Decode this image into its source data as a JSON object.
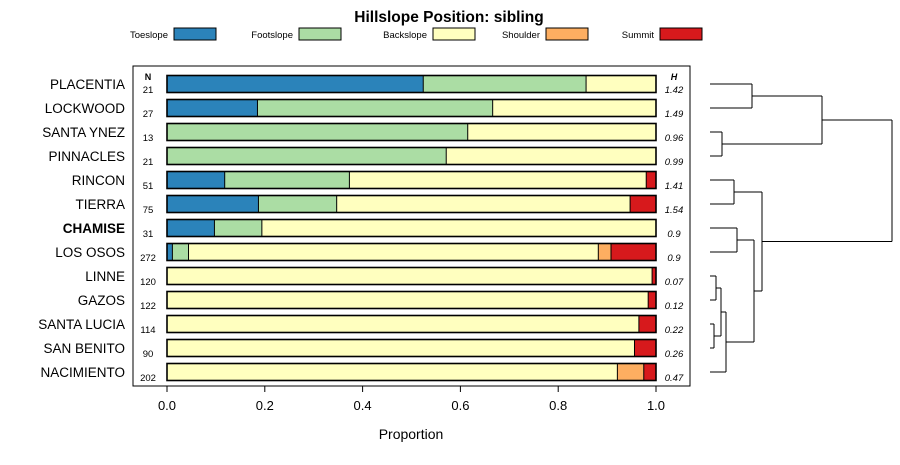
{
  "chart_data": {
    "type": "bar",
    "stacked": true,
    "orientation": "horizontal",
    "title": "Hillslope Position: sibling",
    "xlabel": "Proportion",
    "xlim": [
      0,
      1
    ],
    "x_ticks": [
      "0.0",
      "0.2",
      "0.4",
      "0.6",
      "0.8",
      "1.0"
    ],
    "legend": [
      {
        "label": "Toeslope",
        "color": "#2b83ba"
      },
      {
        "label": "Footslope",
        "color": "#abdda4"
      },
      {
        "label": "Backslope",
        "color": "#ffffbf"
      },
      {
        "label": "Shoulder",
        "color": "#fdae61"
      },
      {
        "label": "Summit",
        "color": "#d7191c"
      }
    ],
    "n_header": "N",
    "h_header": "H",
    "categories": [
      {
        "name": "PLACENTIA",
        "n": "21",
        "h": "1.42",
        "bold": false,
        "values": [
          0.524,
          0.333,
          0.143,
          0,
          0
        ]
      },
      {
        "name": "LOCKWOOD",
        "n": "27",
        "h": "1.49",
        "bold": false,
        "values": [
          0.185,
          0.481,
          0.334,
          0,
          0
        ]
      },
      {
        "name": "SANTA YNEZ",
        "n": "13",
        "h": "0.96",
        "bold": false,
        "values": [
          0,
          0.615,
          0.385,
          0,
          0
        ]
      },
      {
        "name": "PINNACLES",
        "n": "21",
        "h": "0.99",
        "bold": false,
        "values": [
          0,
          0.571,
          0.429,
          0,
          0
        ]
      },
      {
        "name": "RINCON",
        "n": "51",
        "h": "1.41",
        "bold": false,
        "values": [
          0.118,
          0.255,
          0.607,
          0,
          0.02
        ]
      },
      {
        "name": "TIERRA",
        "n": "75",
        "h": "1.54",
        "bold": false,
        "values": [
          0.187,
          0.16,
          0.6,
          0,
          0.053
        ]
      },
      {
        "name": "CHAMISE",
        "n": "31",
        "h": "0.9",
        "bold": true,
        "values": [
          0.097,
          0.097,
          0.806,
          0,
          0
        ]
      },
      {
        "name": "LOS OSOS",
        "n": "272",
        "h": "0.9",
        "bold": false,
        "values": [
          0.011,
          0.033,
          0.838,
          0.026,
          0.092
        ]
      },
      {
        "name": "LINNE",
        "n": "120",
        "h": "0.07",
        "bold": false,
        "values": [
          0,
          0,
          0.992,
          0,
          0.008
        ]
      },
      {
        "name": "GAZOS",
        "n": "122",
        "h": "0.12",
        "bold": false,
        "values": [
          0,
          0,
          0.984,
          0,
          0.016
        ]
      },
      {
        "name": "SANTA LUCIA",
        "n": "114",
        "h": "0.22",
        "bold": false,
        "values": [
          0,
          0,
          0.965,
          0,
          0.035
        ]
      },
      {
        "name": "SAN BENITO",
        "n": "90",
        "h": "0.26",
        "bold": false,
        "values": [
          0,
          0,
          0.956,
          0,
          0.044
        ]
      },
      {
        "name": "NACIMIENTO",
        "n": "202",
        "h": "0.47",
        "bold": false,
        "values": [
          0,
          0,
          0.921,
          0.054,
          0.025
        ]
      }
    ]
  }
}
